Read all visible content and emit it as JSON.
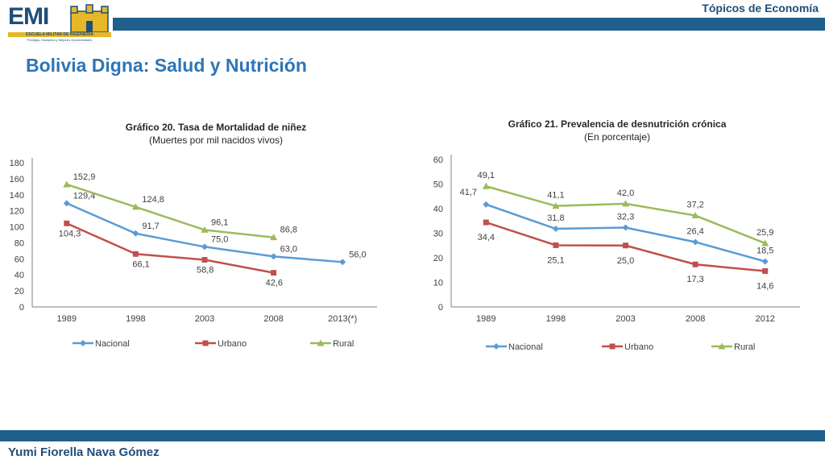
{
  "header": {
    "section_label": "Tópicos de Economía"
  },
  "logo": {
    "text": "EMI",
    "line1": "ESCUELA MILITAR DE INGENIERIA",
    "line2": "Prestigio, Disciplina y Mejores Oportunidades"
  },
  "slide": {
    "title": "Bolivia Digna: Salud y Nutrición"
  },
  "footer": {
    "author": "Yumi Fiorella Nava Gómez"
  },
  "colors": {
    "accent": "#1f5f8b",
    "nacional": "#5b9bd5",
    "urbano": "#c0504d",
    "rural": "#9bbb59"
  },
  "chart_data": [
    {
      "type": "line",
      "title": "Gráfico 20. Tasa de Mortalidad de niñez",
      "subtitle": "(Muertes por mil nacidos vivos)",
      "categories": [
        "1989",
        "1998",
        "2003",
        "2008",
        "2013(*)"
      ],
      "ylim": [
        0,
        180
      ],
      "yticks": [
        0,
        20,
        40,
        60,
        80,
        100,
        120,
        140,
        160,
        180
      ],
      "series": [
        {
          "name": "Nacional",
          "values": [
            129.4,
            91.7,
            75.0,
            63.0,
            56.0
          ],
          "labels": [
            "129,4",
            "91,7",
            "75,0",
            "63,0",
            "56,0"
          ]
        },
        {
          "name": "Urbano",
          "values": [
            104.3,
            66.1,
            58.8,
            42.6,
            null
          ],
          "labels": [
            "104,3",
            "66,1",
            "58,8",
            "42,6",
            null
          ]
        },
        {
          "name": "Rural",
          "values": [
            152.9,
            124.8,
            96.1,
            86.8,
            null
          ],
          "labels": [
            "152,9",
            "124,8",
            "96,1",
            "86,8",
            null
          ]
        }
      ]
    },
    {
      "type": "line",
      "title": "Gráfico 21. Prevalencia de desnutrición crónica",
      "subtitle": "(En porcentaje)",
      "categories": [
        "1989",
        "1998",
        "2003",
        "2008",
        "2012"
      ],
      "ylim": [
        0,
        60
      ],
      "yticks": [
        0,
        10,
        20,
        30,
        40,
        50,
        60
      ],
      "series": [
        {
          "name": "Nacional",
          "values": [
            41.7,
            31.8,
            32.3,
            26.4,
            18.5
          ],
          "labels": [
            "41,7",
            "31,8",
            "32,3",
            "26,4",
            "18,5"
          ]
        },
        {
          "name": "Urbano",
          "values": [
            34.4,
            25.1,
            25.0,
            17.3,
            14.6
          ],
          "labels": [
            "34,4",
            "25,1",
            "25,0",
            "17,3",
            "14,6"
          ]
        },
        {
          "name": "Rural",
          "values": [
            49.1,
            41.1,
            42.0,
            37.2,
            25.9
          ],
          "labels": [
            "49,1",
            "41,1",
            "42,0",
            "37,2",
            "25,9"
          ]
        }
      ]
    }
  ]
}
